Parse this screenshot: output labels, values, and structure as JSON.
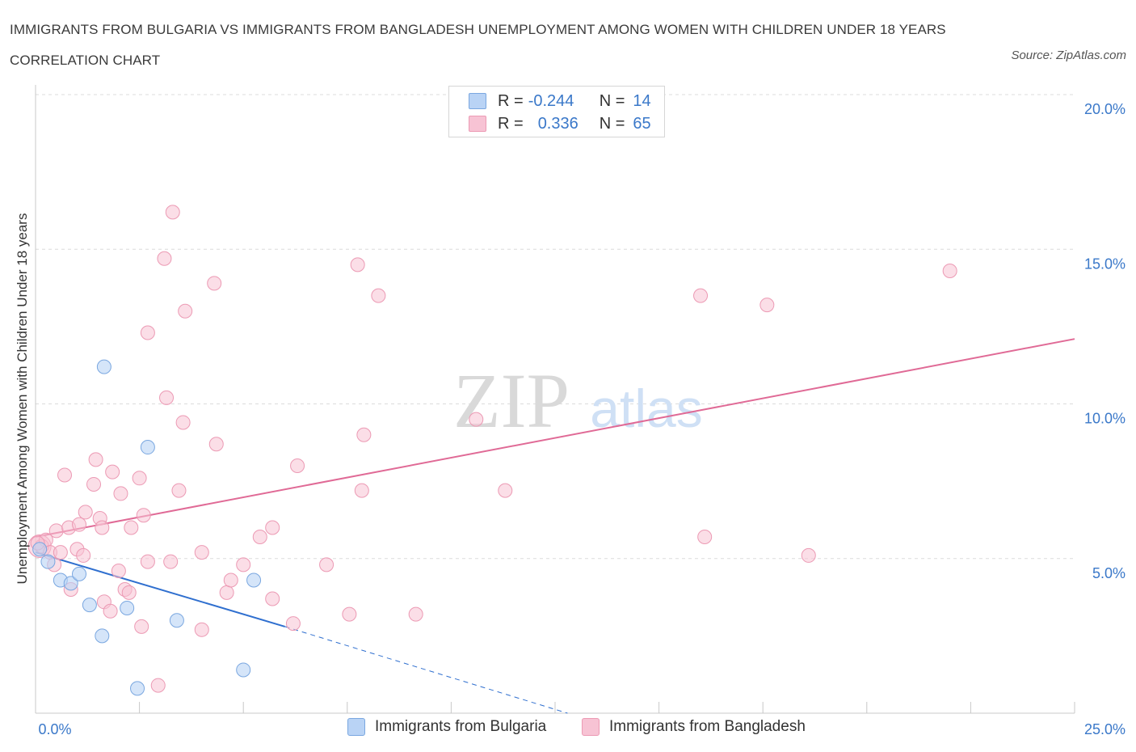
{
  "title": "IMMIGRANTS FROM BULGARIA VS IMMIGRANTS FROM BANGLADESH UNEMPLOYMENT AMONG WOMEN WITH CHILDREN UNDER 18 YEARS CORRELATION CHART",
  "source": "Source: ZipAtlas.com",
  "watermark": {
    "zip": "ZIP",
    "atlas": "atlas"
  },
  "legend": {
    "bulgaria": {
      "r_label": "R =",
      "r_value": "-0.244",
      "n_label": "N =",
      "n_value": "14"
    },
    "bangladesh": {
      "r_label": "R =",
      "r_value": "0.336",
      "n_label": "N =",
      "n_value": "65"
    }
  },
  "colors": {
    "bulgaria_fill": "#b9d3f5",
    "bulgaria_stroke": "#7aa7e0",
    "bulgaria_line": "#2f6fcf",
    "bangladesh_fill": "#f7c3d4",
    "bangladesh_stroke": "#ec9ab4",
    "bangladesh_line": "#e06a96",
    "axis_label": "#3a78c9",
    "grid": "#dcdcdc"
  },
  "chart_data": {
    "type": "scatter",
    "title": "IMMIGRANTS FROM BULGARIA VS IMMIGRANTS FROM BANGLADESH UNEMPLOYMENT AMONG WOMEN WITH CHILDREN UNDER 18 YEARS CORRELATION CHART",
    "xlabel": "",
    "ylabel": "Unemployment Among Women with Children Under 18 years",
    "xlim": [
      0,
      25
    ],
    "ylim": [
      0,
      20
    ],
    "x_tick_labels": [
      "0.0%",
      "25.0%"
    ],
    "y_ticks": [
      5,
      10,
      15,
      20
    ],
    "y_tick_labels": [
      "5.0%",
      "10.0%",
      "15.0%",
      "20.0%"
    ],
    "grid": true,
    "series": [
      {
        "name": "Immigrants from Bulgaria",
        "points": [
          [
            0.1,
            5.3
          ],
          [
            0.3,
            4.9
          ],
          [
            0.6,
            4.3
          ],
          [
            0.85,
            4.2
          ],
          [
            1.05,
            4.5
          ],
          [
            1.3,
            3.5
          ],
          [
            1.6,
            2.5
          ],
          [
            1.65,
            11.2
          ],
          [
            2.2,
            3.4
          ],
          [
            2.45,
            0.8
          ],
          [
            2.7,
            8.6
          ],
          [
            3.4,
            3.0
          ],
          [
            5.0,
            1.4
          ],
          [
            5.25,
            4.3
          ]
        ],
        "trend": {
          "x0": 0,
          "y0": 5.2,
          "x1": 6.0,
          "y1": 2.8,
          "dashed_to_x": 12.8,
          "dashed_to_y": 0
        }
      },
      {
        "name": "Immigrants from Bangladesh",
        "points": [
          [
            0.15,
            5.4
          ],
          [
            0.25,
            5.6
          ],
          [
            0.35,
            5.2
          ],
          [
            0.45,
            4.8
          ],
          [
            0.5,
            5.9
          ],
          [
            0.6,
            5.2
          ],
          [
            0.7,
            7.7
          ],
          [
            0.8,
            6.0
          ],
          [
            0.85,
            4.0
          ],
          [
            1.0,
            5.3
          ],
          [
            1.05,
            6.1
          ],
          [
            1.15,
            5.1
          ],
          [
            1.2,
            6.5
          ],
          [
            1.4,
            7.4
          ],
          [
            1.45,
            8.2
          ],
          [
            1.55,
            6.3
          ],
          [
            1.6,
            6.0
          ],
          [
            1.65,
            3.6
          ],
          [
            1.8,
            3.3
          ],
          [
            1.85,
            7.8
          ],
          [
            2.0,
            4.6
          ],
          [
            2.05,
            7.1
          ],
          [
            2.15,
            4.0
          ],
          [
            2.3,
            6.0
          ],
          [
            2.25,
            3.9
          ],
          [
            2.5,
            7.6
          ],
          [
            2.55,
            2.8
          ],
          [
            2.6,
            6.4
          ],
          [
            2.7,
            4.9
          ],
          [
            2.7,
            12.3
          ],
          [
            2.95,
            0.9
          ],
          [
            3.1,
            14.7
          ],
          [
            3.15,
            10.2
          ],
          [
            3.25,
            4.9
          ],
          [
            3.3,
            16.2
          ],
          [
            3.45,
            7.2
          ],
          [
            3.55,
            9.4
          ],
          [
            3.6,
            13.0
          ],
          [
            4.0,
            5.2
          ],
          [
            4.0,
            2.7
          ],
          [
            4.3,
            13.9
          ],
          [
            4.35,
            8.7
          ],
          [
            4.6,
            3.9
          ],
          [
            4.7,
            4.3
          ],
          [
            5.0,
            4.8
          ],
          [
            5.4,
            5.7
          ],
          [
            5.7,
            6.0
          ],
          [
            5.7,
            3.7
          ],
          [
            6.2,
            2.9
          ],
          [
            6.3,
            8.0
          ],
          [
            7.0,
            4.8
          ],
          [
            7.55,
            3.2
          ],
          [
            7.75,
            14.5
          ],
          [
            7.85,
            7.2
          ],
          [
            7.9,
            9.0
          ],
          [
            8.25,
            13.5
          ],
          [
            9.15,
            3.2
          ],
          [
            10.6,
            9.5
          ],
          [
            11.3,
            7.2
          ],
          [
            16.0,
            13.5
          ],
          [
            16.1,
            5.7
          ],
          [
            17.6,
            13.2
          ],
          [
            18.6,
            5.1
          ],
          [
            22.0,
            14.3
          ],
          [
            0.05,
            5.5
          ]
        ],
        "trend": {
          "x0": 0,
          "y0": 5.7,
          "x1": 25,
          "y1": 12.1
        }
      }
    ]
  }
}
